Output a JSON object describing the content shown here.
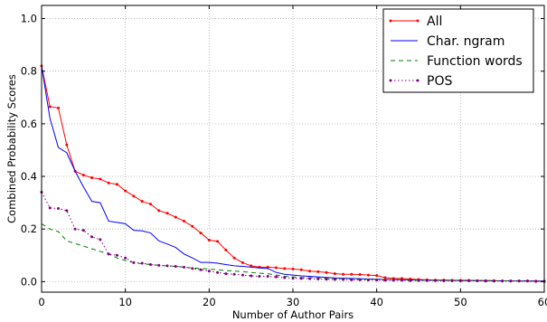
{
  "chart_data": {
    "type": "line",
    "title": "",
    "xlabel": "Number of Author Pairs",
    "ylabel": "Combined Probability Scores",
    "xlim": [
      0,
      60
    ],
    "ylim": [
      -0.04,
      1.05
    ],
    "xticks": [
      0,
      10,
      20,
      30,
      40,
      50,
      60
    ],
    "yticks": [
      0.0,
      0.2,
      0.4,
      0.6,
      0.8,
      1.0
    ],
    "xtick_labels": [
      "0",
      "10",
      "20",
      "30",
      "40",
      "50",
      "60"
    ],
    "ytick_labels": [
      "0.0",
      "0.2",
      "0.4",
      "0.6",
      "0.8",
      "1.0"
    ],
    "grid": true,
    "legend_position": "top-right",
    "series": [
      {
        "name": "All",
        "color": "#ff0000",
        "line_style": "solid",
        "marker": "dot",
        "x": [
          0,
          1,
          2,
          3,
          4,
          5,
          6,
          7,
          8,
          9,
          10,
          11,
          12,
          13,
          14,
          15,
          16,
          17,
          18,
          19,
          20,
          21,
          22,
          23,
          24,
          25,
          26,
          27,
          28,
          29,
          30,
          31,
          32,
          33,
          34,
          35,
          36,
          37,
          38,
          39,
          40,
          41,
          42,
          43,
          44,
          45,
          46,
          47,
          48,
          49,
          50,
          51,
          52,
          53,
          54,
          55,
          56,
          57,
          58,
          59,
          60
        ],
        "y": [
          0.82,
          0.665,
          0.66,
          0.52,
          0.42,
          0.405,
          0.395,
          0.39,
          0.375,
          0.37,
          0.345,
          0.325,
          0.305,
          0.295,
          0.27,
          0.26,
          0.245,
          0.23,
          0.21,
          0.185,
          0.158,
          0.153,
          0.12,
          0.09,
          0.072,
          0.06,
          0.055,
          0.055,
          0.053,
          0.05,
          0.048,
          0.045,
          0.04,
          0.038,
          0.035,
          0.03,
          0.028,
          0.028,
          0.027,
          0.025,
          0.023,
          0.015,
          0.012,
          0.012,
          0.01,
          0.008,
          0.007,
          0.006,
          0.006,
          0.005,
          0.005,
          0.005,
          0.004,
          0.004,
          0.004,
          0.003,
          0.003,
          0.003,
          0.003,
          0.002,
          0.002
        ]
      },
      {
        "name": "Char. ngram",
        "color": "#0000ff",
        "line_style": "solid",
        "marker": "none",
        "x": [
          0,
          1,
          2,
          3,
          4,
          5,
          6,
          7,
          8,
          9,
          10,
          11,
          12,
          13,
          14,
          15,
          16,
          17,
          18,
          19,
          20,
          21,
          22,
          23,
          24,
          25,
          26,
          27,
          28,
          29,
          30,
          31,
          32,
          33,
          34,
          35,
          36,
          37,
          38,
          39,
          40,
          41,
          42,
          43,
          44,
          45,
          46,
          47,
          48,
          49,
          50,
          51,
          52,
          53,
          54,
          55,
          56,
          57,
          58,
          59,
          60
        ],
        "y": [
          0.82,
          0.62,
          0.51,
          0.49,
          0.42,
          0.36,
          0.305,
          0.3,
          0.23,
          0.225,
          0.22,
          0.195,
          0.193,
          0.185,
          0.155,
          0.143,
          0.13,
          0.105,
          0.09,
          0.073,
          0.073,
          0.07,
          0.065,
          0.06,
          0.058,
          0.055,
          0.052,
          0.05,
          0.035,
          0.028,
          0.025,
          0.022,
          0.02,
          0.018,
          0.016,
          0.014,
          0.013,
          0.012,
          0.011,
          0.01,
          0.009,
          0.008,
          0.008,
          0.007,
          0.007,
          0.006,
          0.006,
          0.005,
          0.005,
          0.005,
          0.004,
          0.004,
          0.004,
          0.004,
          0.003,
          0.003,
          0.003,
          0.003,
          0.002,
          0.002,
          0.002
        ]
      },
      {
        "name": "Function words",
        "color": "#008000",
        "line_style": "dashed",
        "marker": "none",
        "x": [
          0,
          1,
          2,
          3,
          4,
          5,
          6,
          7,
          8,
          9,
          10,
          11,
          12,
          13,
          14,
          15,
          16,
          17,
          18,
          19,
          20,
          21,
          22,
          23,
          24,
          25,
          26,
          27,
          28,
          29,
          30,
          31,
          32,
          33,
          34,
          35,
          36,
          37,
          38,
          39,
          40,
          41,
          42,
          43,
          44,
          45,
          46,
          47,
          48,
          49,
          50,
          51,
          52,
          53,
          54,
          55,
          56,
          57,
          58,
          59,
          60
        ],
        "y": [
          0.22,
          0.2,
          0.19,
          0.155,
          0.145,
          0.135,
          0.125,
          0.115,
          0.105,
          0.09,
          0.08,
          0.072,
          0.068,
          0.065,
          0.062,
          0.06,
          0.058,
          0.055,
          0.052,
          0.05,
          0.048,
          0.045,
          0.042,
          0.04,
          0.038,
          0.035,
          0.032,
          0.03,
          0.025,
          0.02,
          0.018,
          0.016,
          0.015,
          0.014,
          0.013,
          0.012,
          0.011,
          0.01,
          0.01,
          0.009,
          0.009,
          0.008,
          0.008,
          0.007,
          0.007,
          0.006,
          0.006,
          0.005,
          0.005,
          0.005,
          0.004,
          0.004,
          0.004,
          0.003,
          0.003,
          0.003,
          0.003,
          0.002,
          0.002,
          0.002,
          0.002
        ]
      },
      {
        "name": "POS",
        "color": "#800080",
        "line_style": "dotted",
        "marker": "dot",
        "x": [
          0,
          1,
          2,
          3,
          4,
          5,
          6,
          7,
          8,
          9,
          10,
          11,
          12,
          13,
          14,
          15,
          16,
          17,
          18,
          19,
          20,
          21,
          22,
          23,
          24,
          25,
          26,
          27,
          28,
          29,
          30,
          31,
          32,
          33,
          34,
          35,
          36,
          37,
          38,
          39,
          40,
          41,
          42,
          43,
          44,
          45,
          46,
          47,
          48,
          49,
          50,
          51,
          52,
          53,
          54,
          55,
          56,
          57,
          58,
          59,
          60
        ],
        "y": [
          0.34,
          0.28,
          0.278,
          0.27,
          0.2,
          0.195,
          0.17,
          0.16,
          0.105,
          0.1,
          0.09,
          0.072,
          0.07,
          0.065,
          0.062,
          0.06,
          0.058,
          0.055,
          0.05,
          0.045,
          0.04,
          0.035,
          0.03,
          0.028,
          0.025,
          0.022,
          0.02,
          0.02,
          0.018,
          0.015,
          0.013,
          0.012,
          0.011,
          0.01,
          0.009,
          0.008,
          0.008,
          0.007,
          0.007,
          0.006,
          0.006,
          0.005,
          0.005,
          0.005,
          0.004,
          0.004,
          0.004,
          0.004,
          0.003,
          0.003,
          0.003,
          0.003,
          0.003,
          0.002,
          0.002,
          0.002,
          0.002,
          0.002,
          0.002,
          0.001,
          0.001
        ]
      }
    ]
  }
}
